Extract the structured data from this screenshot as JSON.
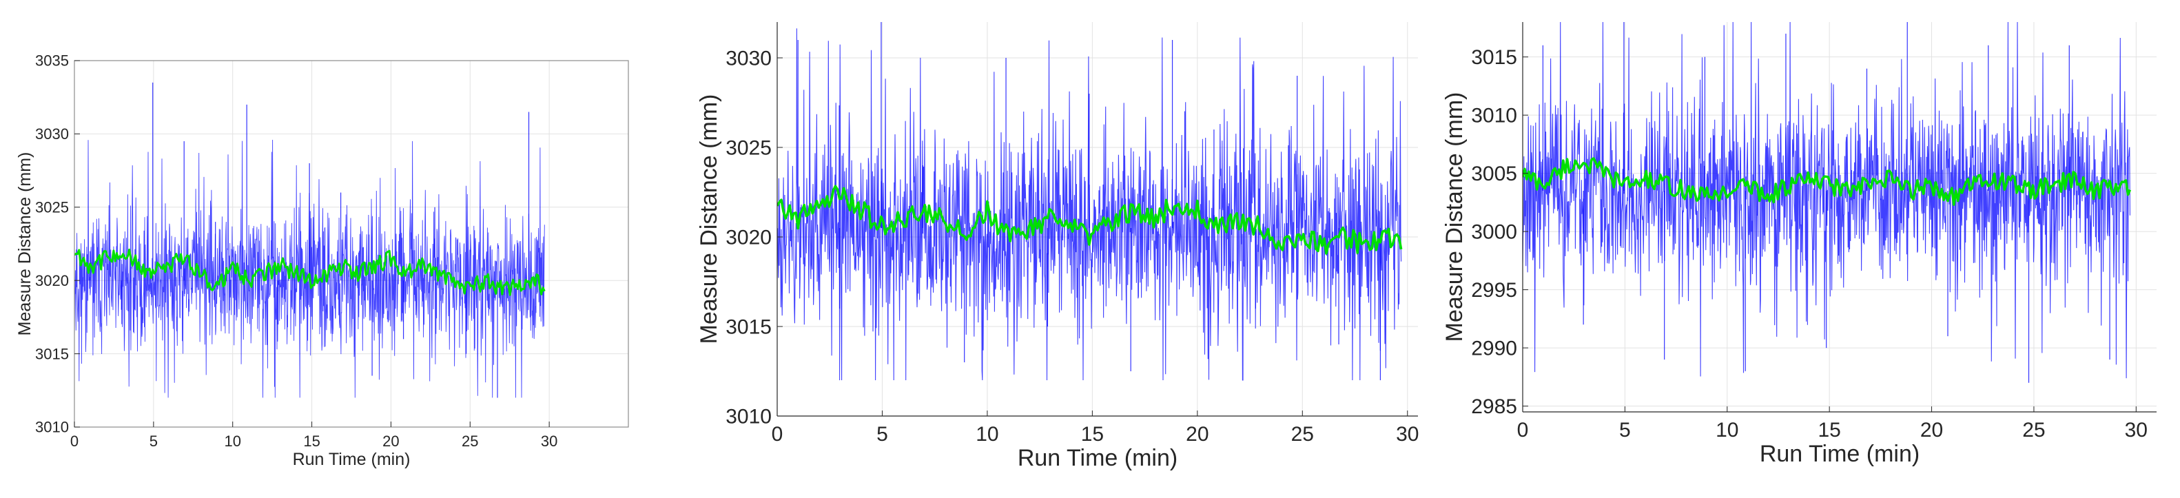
{
  "chart_data": [
    {
      "type": "line",
      "title": "",
      "xlabel": "Run Time (min)",
      "ylabel": "Measure Distance (mm)",
      "xlim": [
        0,
        35
      ],
      "ylim": [
        3010,
        3035
      ],
      "xticks": [
        0,
        5,
        10,
        15,
        20,
        25,
        30
      ],
      "yticks": [
        3010,
        3015,
        3020,
        3025,
        3030,
        3035
      ],
      "grid": true,
      "legend": "none",
      "series": [
        {
          "color": "#0000ff",
          "role": "raw",
          "mean": 3020,
          "spread": 2.4,
          "min": 3012,
          "max": 3033.5,
          "x_range": [
            0,
            29.7
          ],
          "values": [
            3022,
            3018,
            3033.5,
            3029.5,
            3024,
            3032,
            3017,
            3028,
            3026,
            3013.5,
            3016,
            3025,
            3015,
            3012,
            3031.5
          ]
        },
        {
          "color": "#00e000",
          "role": "smoothed",
          "x": [
            0,
            1,
            2,
            3,
            4,
            5,
            6,
            7,
            8,
            9,
            10,
            11,
            12,
            13,
            14,
            15,
            16,
            17,
            18,
            19,
            20,
            21,
            22,
            23,
            24,
            25,
            26,
            27,
            28,
            29,
            29.7
          ],
          "values": [
            3022,
            3021,
            3021.5,
            3022,
            3021,
            3020.5,
            3021,
            3021.5,
            3020.5,
            3019.5,
            3021,
            3020,
            3020.5,
            3021,
            3020.5,
            3020,
            3020.5,
            3021,
            3020.5,
            3021,
            3021.5,
            3020.5,
            3021,
            3020.5,
            3020,
            3019.5,
            3020,
            3019.5,
            3019.5,
            3020,
            3019.5
          ]
        }
      ]
    },
    {
      "type": "line",
      "title": "",
      "xlabel": "Run Time (min)",
      "ylabel": "Measure Distance (mm)",
      "xlim": [
        0,
        30.5
      ],
      "ylim": [
        3010,
        3032
      ],
      "xticks": [
        0,
        5,
        10,
        15,
        20,
        25,
        30
      ],
      "yticks": [
        3010,
        3015,
        3020,
        3025,
        3030
      ],
      "grid": true,
      "legend": "none",
      "series": [
        {
          "color": "#0000ff",
          "role": "raw",
          "mean": 3020.5,
          "spread": 2.8,
          "min": 3012,
          "max": 3032,
          "x_range": [
            0,
            29.7
          ],
          "values": [
            3031,
            3016,
            3032,
            3024,
            3013,
            3030,
            3015,
            3028,
            3012.5,
            3031,
            3026,
            3016,
            3029,
            3014,
            3012
          ]
        },
        {
          "color": "#00e000",
          "role": "smoothed",
          "x": [
            0,
            1,
            2,
            3,
            4,
            5,
            6,
            7,
            8,
            9,
            10,
            11,
            12,
            13,
            14,
            15,
            16,
            17,
            18,
            19,
            20,
            21,
            22,
            23,
            24,
            25,
            26,
            27,
            28,
            29,
            29.7
          ],
          "values": [
            3022,
            3021,
            3022,
            3022.5,
            3021.5,
            3020.5,
            3021,
            3021.5,
            3021,
            3020,
            3021.5,
            3020,
            3020.5,
            3021,
            3020.5,
            3020,
            3021,
            3021.5,
            3021,
            3022,
            3021.5,
            3020.5,
            3021,
            3020.5,
            3019.5,
            3020,
            3019.5,
            3020,
            3019.5,
            3020,
            3019.5
          ]
        }
      ]
    },
    {
      "type": "line",
      "title": "",
      "xlabel": "Run Time (min)",
      "ylabel": "Measure Distance (mm)",
      "xlim": [
        0,
        31
      ],
      "ylim": [
        2984.5,
        3018
      ],
      "xticks": [
        0,
        5,
        10,
        15,
        20,
        25,
        30
      ],
      "yticks": [
        2985,
        2990,
        2995,
        3000,
        3005,
        3010,
        3015
      ],
      "grid": true,
      "legend": "none",
      "series": [
        {
          "color": "#0000ff",
          "role": "raw",
          "mean": 3003.5,
          "spread": 4.2,
          "min": 2987,
          "max": 3018,
          "x_range": [
            0,
            29.7
          ],
          "values": [
            3016,
            2992,
            3018,
            2989,
            3015,
            2988,
            3017,
            2990,
            3014,
            3018,
            2991,
            3016,
            2987,
            3016,
            2989
          ]
        },
        {
          "color": "#00e000",
          "role": "smoothed",
          "x": [
            0,
            1,
            2,
            3,
            4,
            5,
            6,
            7,
            8,
            9,
            10,
            11,
            12,
            13,
            14,
            15,
            16,
            17,
            18,
            19,
            20,
            21,
            22,
            23,
            24,
            25,
            26,
            27,
            28,
            29,
            29.7
          ],
          "values": [
            3005,
            3004,
            3005.5,
            3006,
            3005,
            3004,
            3004.5,
            3004,
            3003.5,
            3003,
            3003.5,
            3004,
            3003,
            3004,
            3004.5,
            3004,
            3003.5,
            3004,
            3004.5,
            3003.5,
            3004,
            3003,
            3004,
            3004.5,
            3004,
            3003.5,
            3004,
            3004.5,
            3003.5,
            3004,
            3003.5
          ]
        }
      ]
    }
  ]
}
